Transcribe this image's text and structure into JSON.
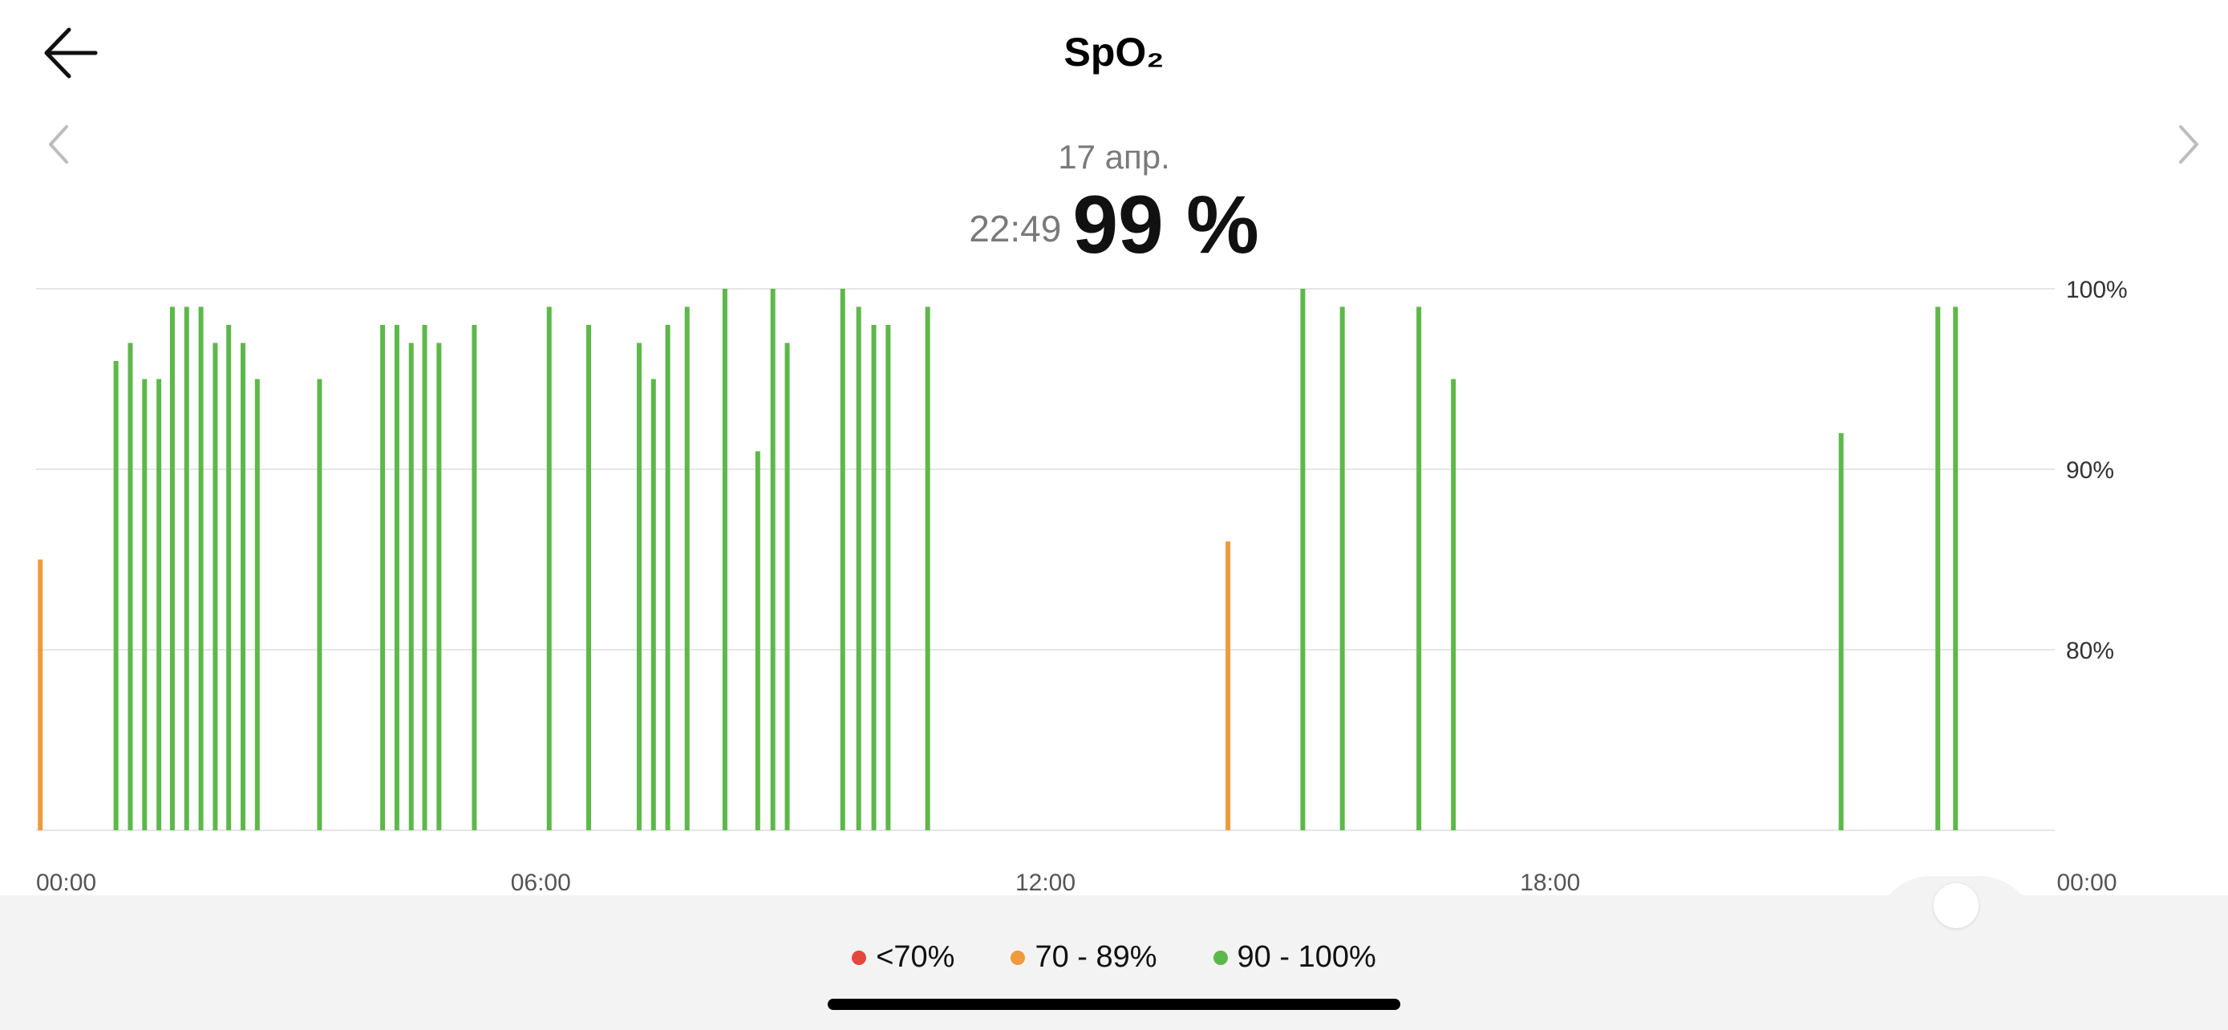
{
  "header": {
    "title": "SpO₂"
  },
  "reading": {
    "date": "17 апр.",
    "time": "22:49",
    "value": "99 %"
  },
  "colors": {
    "low": "#e5473f",
    "mid": "#ef9a3c",
    "high": "#5db84a",
    "grid": "#e6e6e6"
  },
  "legend": [
    {
      "label": "<70%",
      "color": "#e5473f"
    },
    {
      "label": "70 - 89%",
      "color": "#ef9a3c"
    },
    {
      "label": "90 - 100%",
      "color": "#5db84a"
    }
  ],
  "chart_data": {
    "type": "bar",
    "xlabel": "",
    "ylabel": "",
    "xlim_hours": [
      0,
      24
    ],
    "ylim": [
      70,
      100
    ],
    "y_ticks": [
      {
        "value": 100,
        "label": "100%"
      },
      {
        "value": 90,
        "label": "90%"
      },
      {
        "value": 80,
        "label": "80%"
      }
    ],
    "x_ticks": [
      {
        "value": 0,
        "label": "00:00"
      },
      {
        "value": 6,
        "label": "06:00"
      },
      {
        "value": 12,
        "label": "12:00"
      },
      {
        "value": 18,
        "label": "18:00"
      },
      {
        "value": 24,
        "label": "00:00"
      }
    ],
    "grid": true,
    "legend_position": "bottom",
    "points": [
      {
        "hour": 0.05,
        "value": 85,
        "color": "#ef9a3c"
      },
      {
        "hour": 0.95,
        "value": 96,
        "color": "#5db84a"
      },
      {
        "hour": 1.12,
        "value": 97,
        "color": "#5db84a"
      },
      {
        "hour": 1.29,
        "value": 95,
        "color": "#5db84a"
      },
      {
        "hour": 1.46,
        "value": 95,
        "color": "#5db84a"
      },
      {
        "hour": 1.62,
        "value": 99,
        "color": "#5db84a"
      },
      {
        "hour": 1.79,
        "value": 99,
        "color": "#5db84a"
      },
      {
        "hour": 1.96,
        "value": 99,
        "color": "#5db84a"
      },
      {
        "hour": 2.13,
        "value": 97,
        "color": "#5db84a"
      },
      {
        "hour": 2.29,
        "value": 98,
        "color": "#5db84a"
      },
      {
        "hour": 2.46,
        "value": 97,
        "color": "#5db84a"
      },
      {
        "hour": 2.63,
        "value": 95,
        "color": "#5db84a"
      },
      {
        "hour": 3.37,
        "value": 95,
        "color": "#5db84a"
      },
      {
        "hour": 4.12,
        "value": 98,
        "color": "#5db84a"
      },
      {
        "hour": 4.29,
        "value": 98,
        "color": "#5db84a"
      },
      {
        "hour": 4.46,
        "value": 97,
        "color": "#5db84a"
      },
      {
        "hour": 4.62,
        "value": 98,
        "color": "#5db84a"
      },
      {
        "hour": 4.79,
        "value": 97,
        "color": "#5db84a"
      },
      {
        "hour": 5.21,
        "value": 98,
        "color": "#5db84a"
      },
      {
        "hour": 6.1,
        "value": 99,
        "color": "#5db84a"
      },
      {
        "hour": 6.57,
        "value": 98,
        "color": "#5db84a"
      },
      {
        "hour": 7.17,
        "value": 97,
        "color": "#5db84a"
      },
      {
        "hour": 7.34,
        "value": 95,
        "color": "#5db84a"
      },
      {
        "hour": 7.51,
        "value": 98,
        "color": "#5db84a"
      },
      {
        "hour": 7.74,
        "value": 99,
        "color": "#5db84a"
      },
      {
        "hour": 8.19,
        "value": 100,
        "color": "#5db84a"
      },
      {
        "hour": 8.58,
        "value": 91,
        "color": "#5db84a"
      },
      {
        "hour": 8.76,
        "value": 100,
        "color": "#5db84a"
      },
      {
        "hour": 8.93,
        "value": 97,
        "color": "#5db84a"
      },
      {
        "hour": 9.59,
        "value": 100,
        "color": "#5db84a"
      },
      {
        "hour": 9.78,
        "value": 99,
        "color": "#5db84a"
      },
      {
        "hour": 9.96,
        "value": 98,
        "color": "#5db84a"
      },
      {
        "hour": 10.13,
        "value": 98,
        "color": "#5db84a"
      },
      {
        "hour": 10.6,
        "value": 99,
        "color": "#5db84a"
      },
      {
        "hour": 14.17,
        "value": 86,
        "color": "#ef9a3c"
      },
      {
        "hour": 15.06,
        "value": 100,
        "color": "#5db84a"
      },
      {
        "hour": 15.53,
        "value": 99,
        "color": "#5db84a"
      },
      {
        "hour": 16.44,
        "value": 99,
        "color": "#5db84a"
      },
      {
        "hour": 16.85,
        "value": 95,
        "color": "#5db84a"
      },
      {
        "hour": 21.46,
        "value": 92,
        "color": "#5db84a"
      },
      {
        "hour": 22.61,
        "value": 99,
        "color": "#5db84a"
      },
      {
        "hour": 22.82,
        "value": 99,
        "color": "#5db84a"
      }
    ]
  }
}
